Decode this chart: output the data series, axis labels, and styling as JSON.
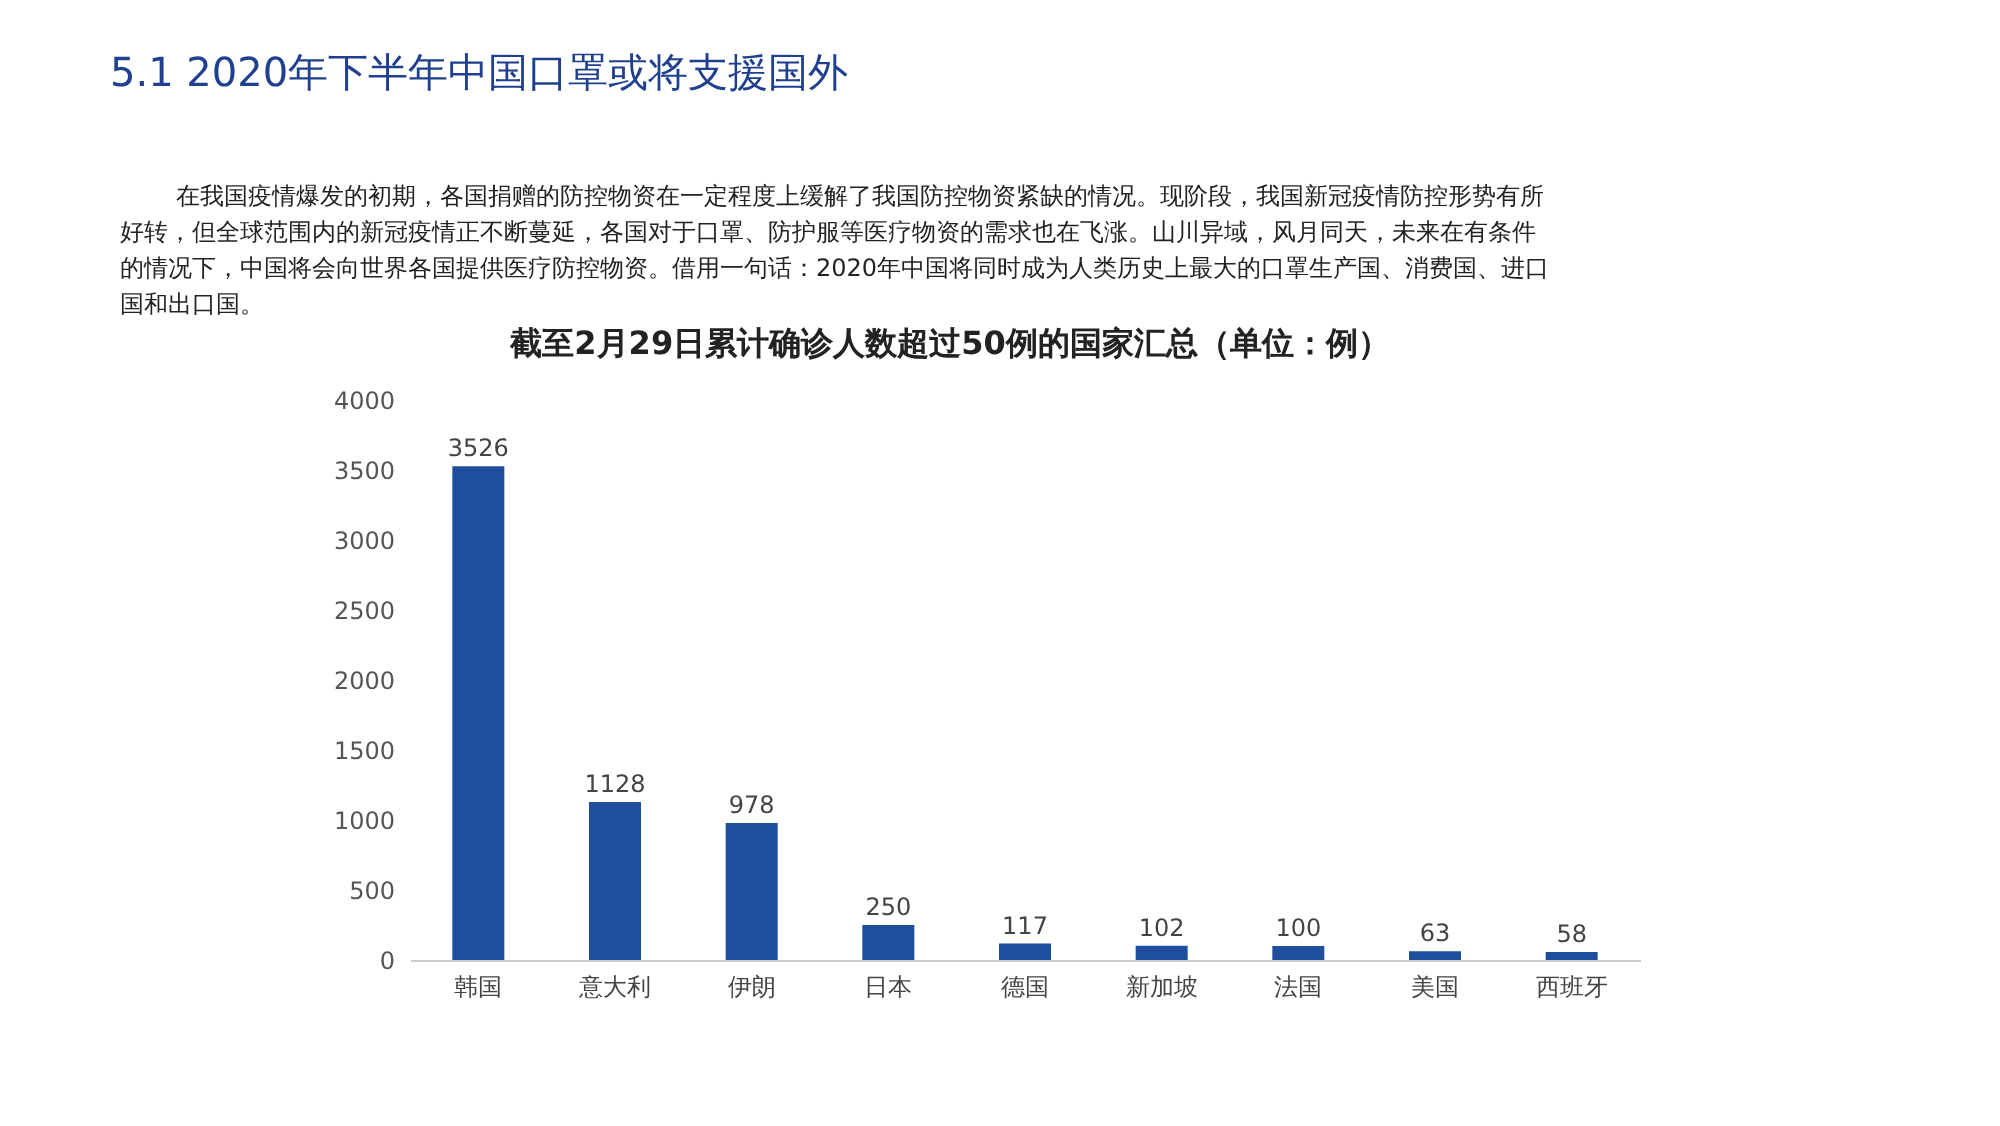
{
  "chart_data": {
    "type": "bar",
    "title": "截至2月29日累计确诊人数超过50例的国家汇总（单位：例）",
    "annotations": [
      "5.1 2020年下半年中国口罩或将支援国外",
      "在我国疫情爆发的初期，各国捐赠的防控物资在一定程度上缓解了我国防控物资紧缺的情况。现阶段，我国新冠疫情防控形势有所好转，但全球范围内的新冠疫情正不断蔓延，各国对于口罩、防护服等医疗物资的需求也在飞涨。山川异域，风月同天，未来在有条件的情况下，中国将会向世界各国提供医疗防控物资。借用一句话：2020年中国将同时成为人类历史上最大的口罩生产国、消费国、进口国和出口国。"
    ],
    "categories": [
      "韩国",
      "意大利",
      "伊朗",
      "日本",
      "德国",
      "新加坡",
      "法国",
      "美国",
      "西班牙"
    ],
    "values": [
      3526,
      1128,
      978,
      250,
      117,
      102,
      100,
      63,
      58
    ],
    "color": "#1f4e9c",
    "ylim": [
      0,
      4000
    ],
    "yticks": [
      0,
      500,
      1000,
      1500,
      2000,
      2500,
      3000,
      3500,
      4000
    ],
    "grid": false,
    "data_labels": true
  }
}
